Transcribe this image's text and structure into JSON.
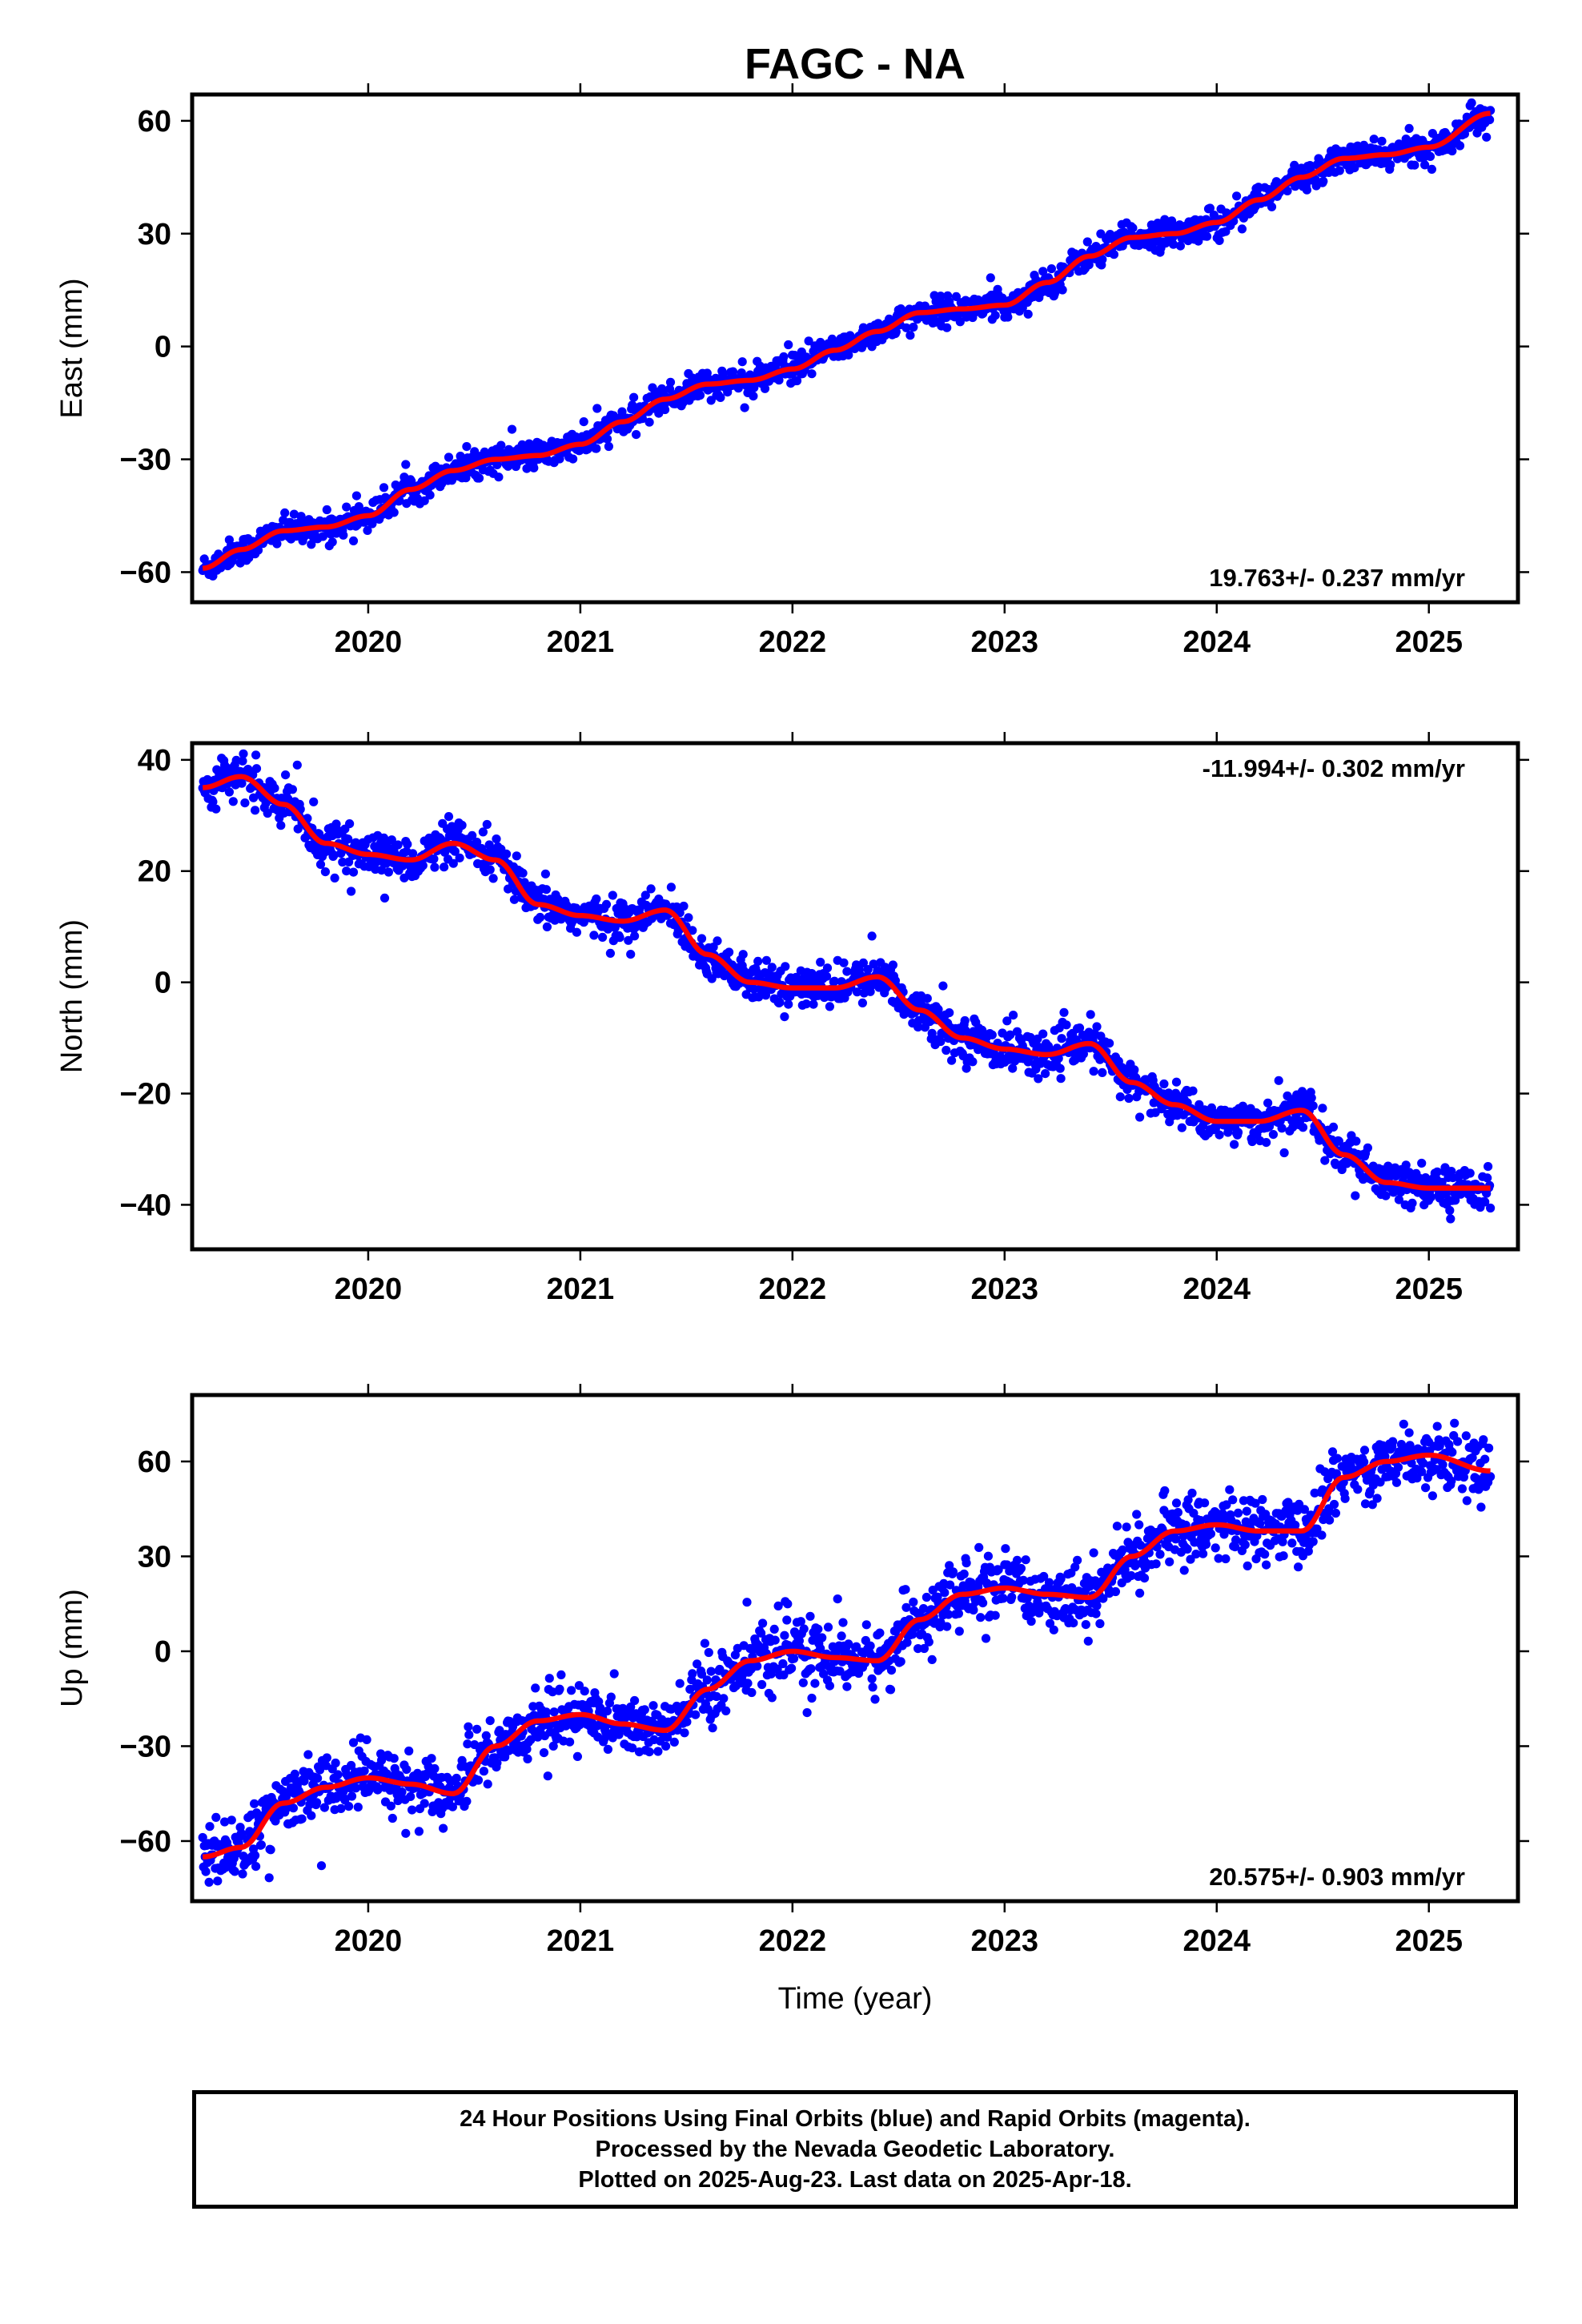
{
  "title": "FAGC - NA",
  "colors": {
    "final_orbits": "#0000ff",
    "rapid_orbits": "#ff00ff",
    "model_fit": "#ff0000",
    "frame": "#000000"
  },
  "chart_data": [
    {
      "type": "scatter",
      "component": "east",
      "ylabel": "East (mm)",
      "xlabel": "",
      "rate_label": "19.763+/- 0.237 mm/yr",
      "rate_position": "bottom-right",
      "xlim": [
        2019.17,
        2025.42
      ],
      "ylim": [
        -68,
        67
      ],
      "xticks": [
        2020,
        2021,
        2022,
        2023,
        2024,
        2025
      ],
      "yticks": [
        -60,
        -30,
        0,
        30,
        60
      ],
      "ytick_labels": [
        "−60",
        "−30",
        "0",
        "30",
        "60"
      ],
      "data_span": [
        2019.22,
        2025.29
      ],
      "fit_curve": {
        "x": [
          2019.22,
          2019.4,
          2019.6,
          2019.8,
          2020.0,
          2020.2,
          2020.4,
          2020.6,
          2020.8,
          2021.0,
          2021.2,
          2021.4,
          2021.6,
          2021.8,
          2022.0,
          2022.2,
          2022.4,
          2022.6,
          2022.8,
          2023.0,
          2023.2,
          2023.4,
          2023.6,
          2023.8,
          2024.0,
          2024.2,
          2024.4,
          2024.6,
          2024.8,
          2025.0,
          2025.29
        ],
        "y": [
          -59,
          -54,
          -49,
          -48,
          -45,
          -38,
          -33,
          -30,
          -29,
          -26,
          -20,
          -14,
          -10,
          -9,
          -6,
          -1,
          4,
          9,
          10,
          11,
          17,
          24,
          29,
          30,
          33,
          39,
          45,
          50,
          51,
          53,
          62
        ]
      },
      "scatter_noise_mm": 1.8
    },
    {
      "type": "scatter",
      "component": "north",
      "ylabel": "North (mm)",
      "xlabel": "",
      "rate_label": "-11.994+/- 0.302 mm/yr",
      "rate_position": "top-right",
      "xlim": [
        2019.17,
        2025.42
      ],
      "ylim": [
        -48,
        43
      ],
      "xticks": [
        2020,
        2021,
        2022,
        2023,
        2024,
        2025
      ],
      "yticks": [
        -40,
        -20,
        0,
        20,
        40
      ],
      "ytick_labels": [
        "−40",
        "−20",
        "0",
        "20",
        "40"
      ],
      "data_span": [
        2019.22,
        2025.29
      ],
      "fit_curve": {
        "x": [
          2019.22,
          2019.4,
          2019.6,
          2019.8,
          2020.0,
          2020.2,
          2020.4,
          2020.6,
          2020.8,
          2021.0,
          2021.2,
          2021.4,
          2021.6,
          2021.8,
          2022.0,
          2022.2,
          2022.4,
          2022.6,
          2022.8,
          2023.0,
          2023.2,
          2023.4,
          2023.6,
          2023.8,
          2024.0,
          2024.2,
          2024.4,
          2024.6,
          2024.8,
          2025.0,
          2025.29
        ],
        "y": [
          35,
          37,
          32,
          25,
          23,
          22,
          25,
          22,
          14,
          12,
          11,
          13,
          5,
          0,
          -1,
          -1,
          1,
          -5,
          -10,
          -12,
          -13,
          -11,
          -18,
          -22,
          -25,
          -25,
          -23,
          -31,
          -36,
          -37,
          -37
        ]
      },
      "scatter_noise_mm": 1.8
    },
    {
      "type": "scatter",
      "component": "up",
      "ylabel": "Up (mm)",
      "xlabel": "Time (year)",
      "rate_label": "20.575+/- 0.903 mm/yr",
      "rate_position": "bottom-right",
      "xlim": [
        2019.17,
        2025.42
      ],
      "ylim": [
        -79,
        81
      ],
      "xticks": [
        2020,
        2021,
        2022,
        2023,
        2024,
        2025
      ],
      "yticks": [
        -60,
        -30,
        0,
        30,
        60
      ],
      "ytick_labels": [
        "−60",
        "−30",
        "0",
        "30",
        "60"
      ],
      "data_span": [
        2019.22,
        2025.29
      ],
      "fit_curve": {
        "x": [
          2019.22,
          2019.4,
          2019.6,
          2019.8,
          2020.0,
          2020.2,
          2020.4,
          2020.6,
          2020.8,
          2021.0,
          2021.2,
          2021.4,
          2021.6,
          2021.8,
          2022.0,
          2022.2,
          2022.4,
          2022.6,
          2022.8,
          2023.0,
          2023.2,
          2023.4,
          2023.6,
          2023.8,
          2024.0,
          2024.2,
          2024.4,
          2024.6,
          2024.8,
          2025.0,
          2025.29
        ],
        "y": [
          -65,
          -62,
          -48,
          -43,
          -40,
          -42,
          -45,
          -30,
          -22,
          -20,
          -23,
          -25,
          -12,
          -3,
          0,
          -2,
          -3,
          10,
          18,
          20,
          18,
          17,
          30,
          38,
          40,
          38,
          38,
          55,
          60,
          62,
          57
        ]
      },
      "scatter_noise_mm": 5.0
    }
  ],
  "footer": {
    "line1": "24 Hour Positions Using Final Orbits (blue) and Rapid Orbits (magenta).",
    "line2": "Processed by the Nevada Geodetic Laboratory.",
    "line3": "Plotted on 2025-Aug-23. Last data on 2025-Apr-18."
  }
}
